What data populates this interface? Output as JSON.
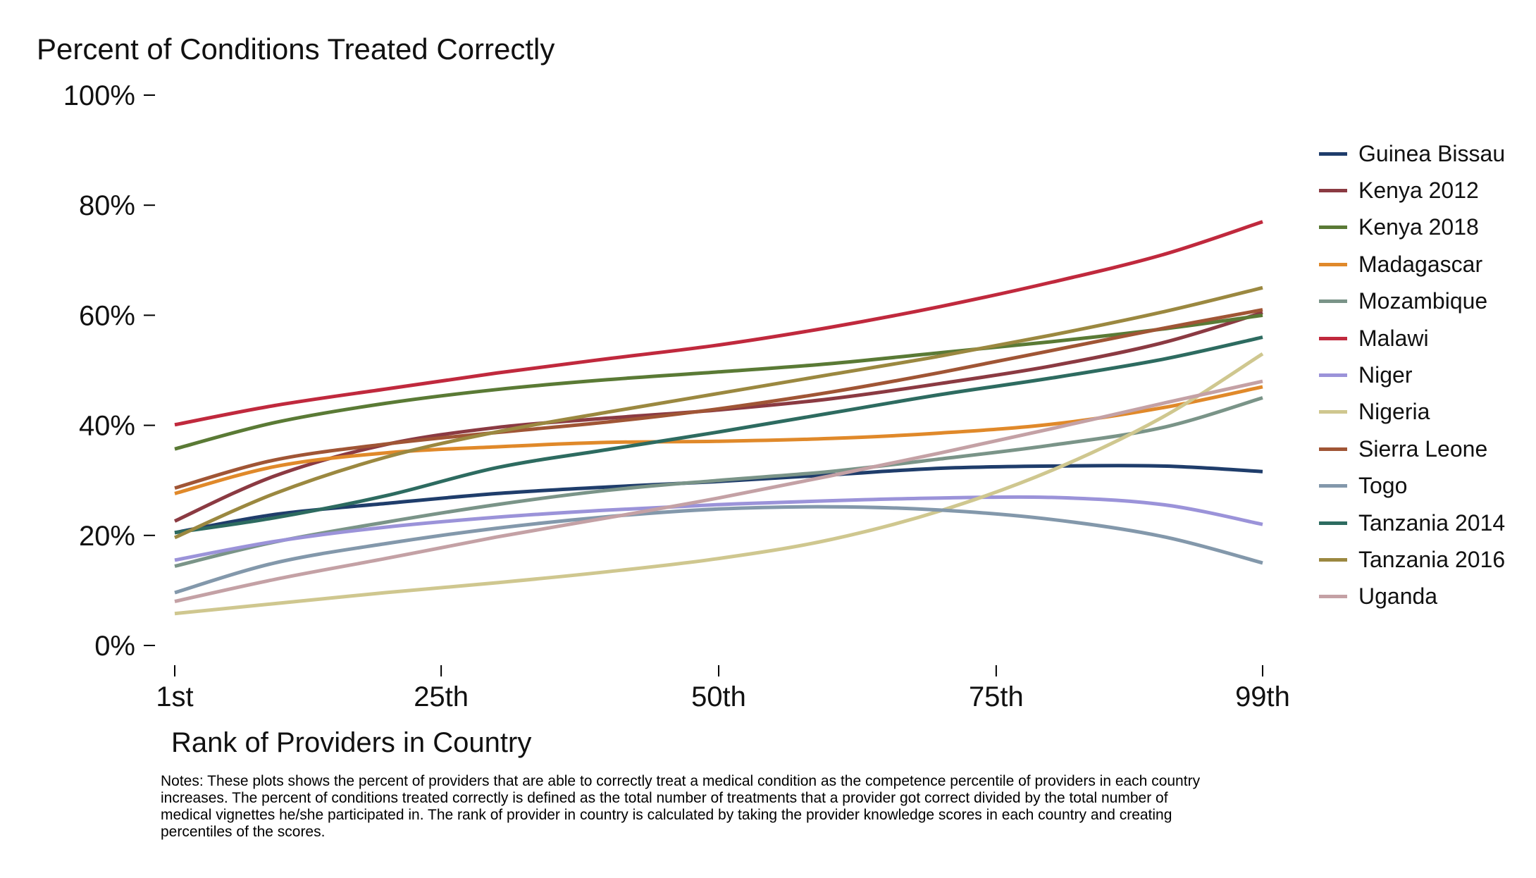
{
  "chart_data": {
    "type": "line",
    "ylabel": "Percent of Conditions Treated Correctly",
    "xlabel": "Rank of Providers in Country",
    "notes": "Notes: These plots shows the percent of providers that are able to correctly treat a medical condition as the competence percentile of providers in each country\nincreases. The percent of conditions treated correctly is defined as the total number of treatments that a provider got correct divided by the total number of\nmedical vignettes he/she participated in. The rank of provider in country is calculated by taking the provider knowledge scores in each country and creating\npercentiles of the scores.",
    "xlim": [
      1,
      99
    ],
    "ylim": [
      0,
      100
    ],
    "x_ticks": [
      1,
      25,
      50,
      75,
      99
    ],
    "x_tick_labels": [
      "1st",
      "25th",
      "50th",
      "75th",
      "99th"
    ],
    "y_ticks": [
      0,
      20,
      40,
      60,
      80,
      100
    ],
    "y_tick_labels": [
      "0%",
      "20%",
      "40%",
      "60%",
      "80%",
      "100%"
    ],
    "grid": false,
    "legend_position": "right",
    "x": [
      1,
      10,
      20,
      30,
      40,
      50,
      60,
      70,
      80,
      90,
      99
    ],
    "series": [
      {
        "name": "Guinea Bissau",
        "color": "#1f3d6b",
        "values": [
          20.5,
          23.8,
          25.8,
          27.6,
          28.8,
          29.8,
          31.0,
          32.2,
          32.6,
          32.6,
          31.6
        ]
      },
      {
        "name": "Kenya 2012",
        "color": "#8b3a42",
        "values": [
          22.6,
          30.8,
          36.5,
          39.6,
          41.3,
          42.8,
          44.8,
          47.6,
          50.8,
          55.0,
          60.5
        ]
      },
      {
        "name": "Kenya 2018",
        "color": "#5a7a35",
        "values": [
          35.7,
          40.5,
          44.0,
          46.5,
          48.3,
          49.7,
          51.2,
          53.2,
          55.2,
          57.5,
          60.0
        ]
      },
      {
        "name": "Madagascar",
        "color": "#e0892a",
        "values": [
          27.6,
          32.5,
          35.0,
          36.1,
          36.9,
          37.1,
          37.6,
          38.6,
          40.2,
          43.2,
          47.0
        ]
      },
      {
        "name": "Mozambique",
        "color": "#7a9488",
        "values": [
          14.4,
          18.8,
          22.4,
          25.6,
          28.2,
          30.0,
          31.6,
          33.9,
          36.4,
          39.6,
          45.0
        ]
      },
      {
        "name": "Malawi",
        "color": "#c0293d",
        "values": [
          40.1,
          43.6,
          46.6,
          49.5,
          52.1,
          54.6,
          57.8,
          61.6,
          66.0,
          71.0,
          77.0
        ]
      },
      {
        "name": "Niger",
        "color": "#9b93d9",
        "values": [
          15.5,
          18.9,
          21.5,
          23.3,
          24.6,
          25.6,
          26.3,
          26.8,
          26.9,
          25.6,
          22.0
        ]
      },
      {
        "name": "Nigeria",
        "color": "#cfc78f",
        "values": [
          5.8,
          7.6,
          9.6,
          11.4,
          13.4,
          15.8,
          19.2,
          24.5,
          31.8,
          41.5,
          53.0
        ]
      },
      {
        "name": "Sierra Leone",
        "color": "#a05535",
        "values": [
          28.6,
          33.7,
          36.6,
          38.7,
          40.6,
          43.0,
          46.0,
          49.6,
          53.6,
          57.6,
          61.0
        ]
      },
      {
        "name": "Togo",
        "color": "#8398ab",
        "values": [
          9.6,
          15.0,
          18.5,
          21.3,
          23.4,
          24.8,
          25.2,
          24.6,
          22.9,
          19.8,
          15.0
        ]
      },
      {
        "name": "Tanzania 2014",
        "color": "#2d6b60",
        "values": [
          20.5,
          23.2,
          27.2,
          32.3,
          35.6,
          38.8,
          42.2,
          45.6,
          48.6,
          52.0,
          56.0
        ]
      },
      {
        "name": "Tanzania 2016",
        "color": "#9b8840",
        "values": [
          19.6,
          27.6,
          34.2,
          38.8,
          42.4,
          45.8,
          49.2,
          52.6,
          56.4,
          60.6,
          65.0
        ]
      },
      {
        "name": "Uganda",
        "color": "#c4a1a5",
        "values": [
          8.0,
          12.0,
          15.8,
          19.7,
          23.2,
          26.8,
          30.8,
          35.0,
          39.4,
          44.0,
          48.0
        ]
      }
    ]
  }
}
